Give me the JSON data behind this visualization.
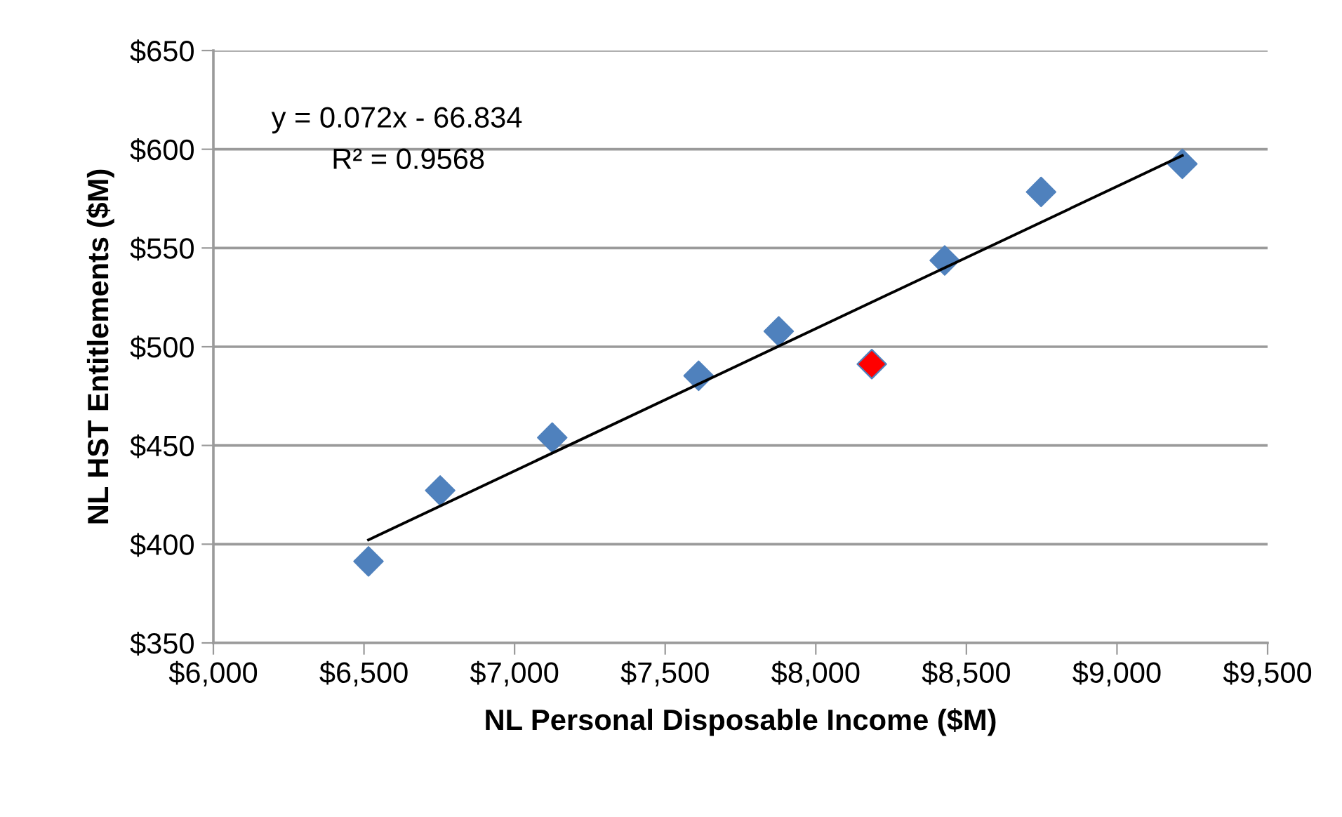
{
  "chart_data": {
    "type": "scatter",
    "xlabel": "NL Personal Disposable Income ($M)",
    "ylabel": "NL HST Entitlements ($M)",
    "x": [
      6515,
      6753,
      7125,
      7611,
      7877,
      8186,
      8428,
      8748,
      9217
    ],
    "series": [
      {
        "values": [
          391.3,
          427.2,
          454,
          485.3,
          507.8,
          491.2,
          543.7,
          578.4,
          592.6
        ],
        "colors": [
          "#4f81bd",
          "#4f81bd",
          "#4f81bd",
          "#4f81bd",
          "#4f81bd",
          "#ff0000",
          "#4f81bd",
          "#4f81bd",
          "#4f81bd"
        ],
        "marker": "diamond"
      },
      {
        "type": "line",
        "x": [
          6515,
          9217
        ],
        "values": [
          402.2,
          596.8
        ],
        "color": "#000000",
        "marker": "none",
        "line_style": "solid"
      }
    ],
    "annotations": [
      "y = 0.072x - 66.834",
      "R² = 0.9568"
    ],
    "xlim": [
      6000,
      9500
    ],
    "xticks": [
      {
        "value": 6000,
        "label": "$6,000"
      },
      {
        "value": 6500,
        "label": "$6,500"
      },
      {
        "value": 7000,
        "label": "$7,000"
      },
      {
        "value": 7500,
        "label": "$7,500"
      },
      {
        "value": 8000,
        "label": "$8,000"
      },
      {
        "value": 8500,
        "label": "$8,500"
      },
      {
        "value": 9000,
        "label": "$9,000"
      },
      {
        "value": 9500,
        "label": "$9,500"
      }
    ],
    "ylim": [
      350,
      650
    ],
    "yticks": [
      {
        "value": 350,
        "label": "$350"
      },
      {
        "value": 400,
        "label": "$400"
      },
      {
        "value": 450,
        "label": "$450"
      },
      {
        "value": 500,
        "label": "$500"
      },
      {
        "value": 550,
        "label": "$550"
      },
      {
        "value": 600,
        "label": "$600"
      },
      {
        "value": 650,
        "label": "$650"
      }
    ],
    "grid": "y",
    "legend": false
  }
}
